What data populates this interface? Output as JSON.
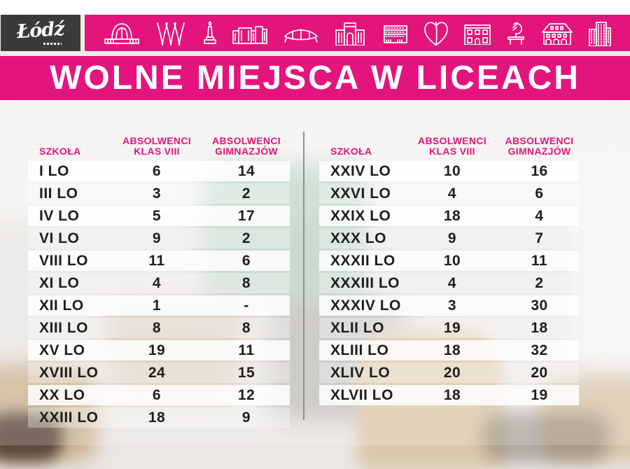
{
  "colors": {
    "pink": "#e3157c",
    "logo_bg": "#3b3a38",
    "text": "#1f1e1c",
    "divider": "#8f8f8f"
  },
  "logo": {
    "city_name": "Łódź"
  },
  "icon_bar": {
    "icons": [
      "railway-station-icon",
      "arch-trees-icon",
      "monument-obelisk-icon",
      "factory-buildings-icon",
      "arena-icon",
      "gate-building-icon",
      "striped-building-icon",
      "leaf-heart-icon",
      "palace-facade-icon",
      "bench-sculpture-icon",
      "arcade-manor-icon",
      "office-building-icon"
    ]
  },
  "title": {
    "text": "WOLNE MIEJSCA W LICEACH"
  },
  "table_headers": {
    "school": "SZKOŁA",
    "col2": [
      "ABSOLWENCI",
      "KLAS VIII"
    ],
    "col3": [
      "ABSOLWENCI",
      "GIMNAZJÓW"
    ]
  },
  "tables": {
    "left": {
      "rows": [
        [
          "I LO",
          "6",
          "14"
        ],
        [
          "III LO",
          "3",
          "2"
        ],
        [
          "IV LO",
          "5",
          "17"
        ],
        [
          "VI LO",
          "9",
          "2"
        ],
        [
          "VIII LO",
          "11",
          "6"
        ],
        [
          "XI LO",
          "4",
          "8"
        ],
        [
          "XII LO",
          "1",
          "-"
        ],
        [
          "XIII LO",
          "8",
          "8"
        ],
        [
          "XV LO",
          "19",
          "11"
        ],
        [
          "XVIII LO",
          "24",
          "15"
        ],
        [
          "XX LO",
          "6",
          "12"
        ],
        [
          "XXIII LO",
          "18",
          "9"
        ]
      ]
    },
    "right": {
      "rows": [
        [
          "XXIV LO",
          "10",
          "16"
        ],
        [
          "XXVI LO",
          "4",
          "6"
        ],
        [
          "XXIX LO",
          "18",
          "4"
        ],
        [
          "XXX LO",
          "9",
          "7"
        ],
        [
          "XXXII LO",
          "10",
          "11"
        ],
        [
          "XXXIII LO",
          "4",
          "2"
        ],
        [
          "XXXIV LO",
          "3",
          "30"
        ],
        [
          "XLII LO",
          "19",
          "18"
        ],
        [
          "XLIII LO",
          "18",
          "32"
        ],
        [
          "XLIV LO",
          "20",
          "20"
        ],
        [
          "XLVII LO",
          "18",
          "19"
        ]
      ]
    }
  },
  "chart_data": [
    {
      "type": "table",
      "title": "WOLNE MIEJSCA W LICEACH",
      "columns": [
        "SZKOŁA",
        "ABSOLWENCI KLAS VIII",
        "ABSOLWENCI GIMNAZJÓW"
      ],
      "rows": [
        [
          "I LO",
          6,
          14
        ],
        [
          "III LO",
          3,
          2
        ],
        [
          "IV LO",
          5,
          17
        ],
        [
          "VI LO",
          9,
          2
        ],
        [
          "VIII LO",
          11,
          6
        ],
        [
          "XI LO",
          4,
          8
        ],
        [
          "XII LO",
          1,
          null
        ],
        [
          "XIII LO",
          8,
          8
        ],
        [
          "XV LO",
          19,
          11
        ],
        [
          "XVIII LO",
          24,
          15
        ],
        [
          "XX LO",
          6,
          12
        ],
        [
          "XXIII LO",
          18,
          9
        ]
      ]
    },
    {
      "type": "table",
      "title": "WOLNE MIEJSCA W LICEACH",
      "columns": [
        "SZKOŁA",
        "ABSOLWENCI KLAS VIII",
        "ABSOLWENCI GIMNAZJÓW"
      ],
      "rows": [
        [
          "XXIV LO",
          10,
          16
        ],
        [
          "XXVI LO",
          4,
          6
        ],
        [
          "XXIX LO",
          18,
          4
        ],
        [
          "XXX LO",
          9,
          7
        ],
        [
          "XXXII LO",
          10,
          11
        ],
        [
          "XXXIII LO",
          4,
          2
        ],
        [
          "XXXIV LO",
          3,
          30
        ],
        [
          "XLII LO",
          19,
          18
        ],
        [
          "XLIII LO",
          18,
          32
        ],
        [
          "XLIV LO",
          20,
          20
        ],
        [
          "XLVII LO",
          18,
          19
        ]
      ]
    }
  ]
}
